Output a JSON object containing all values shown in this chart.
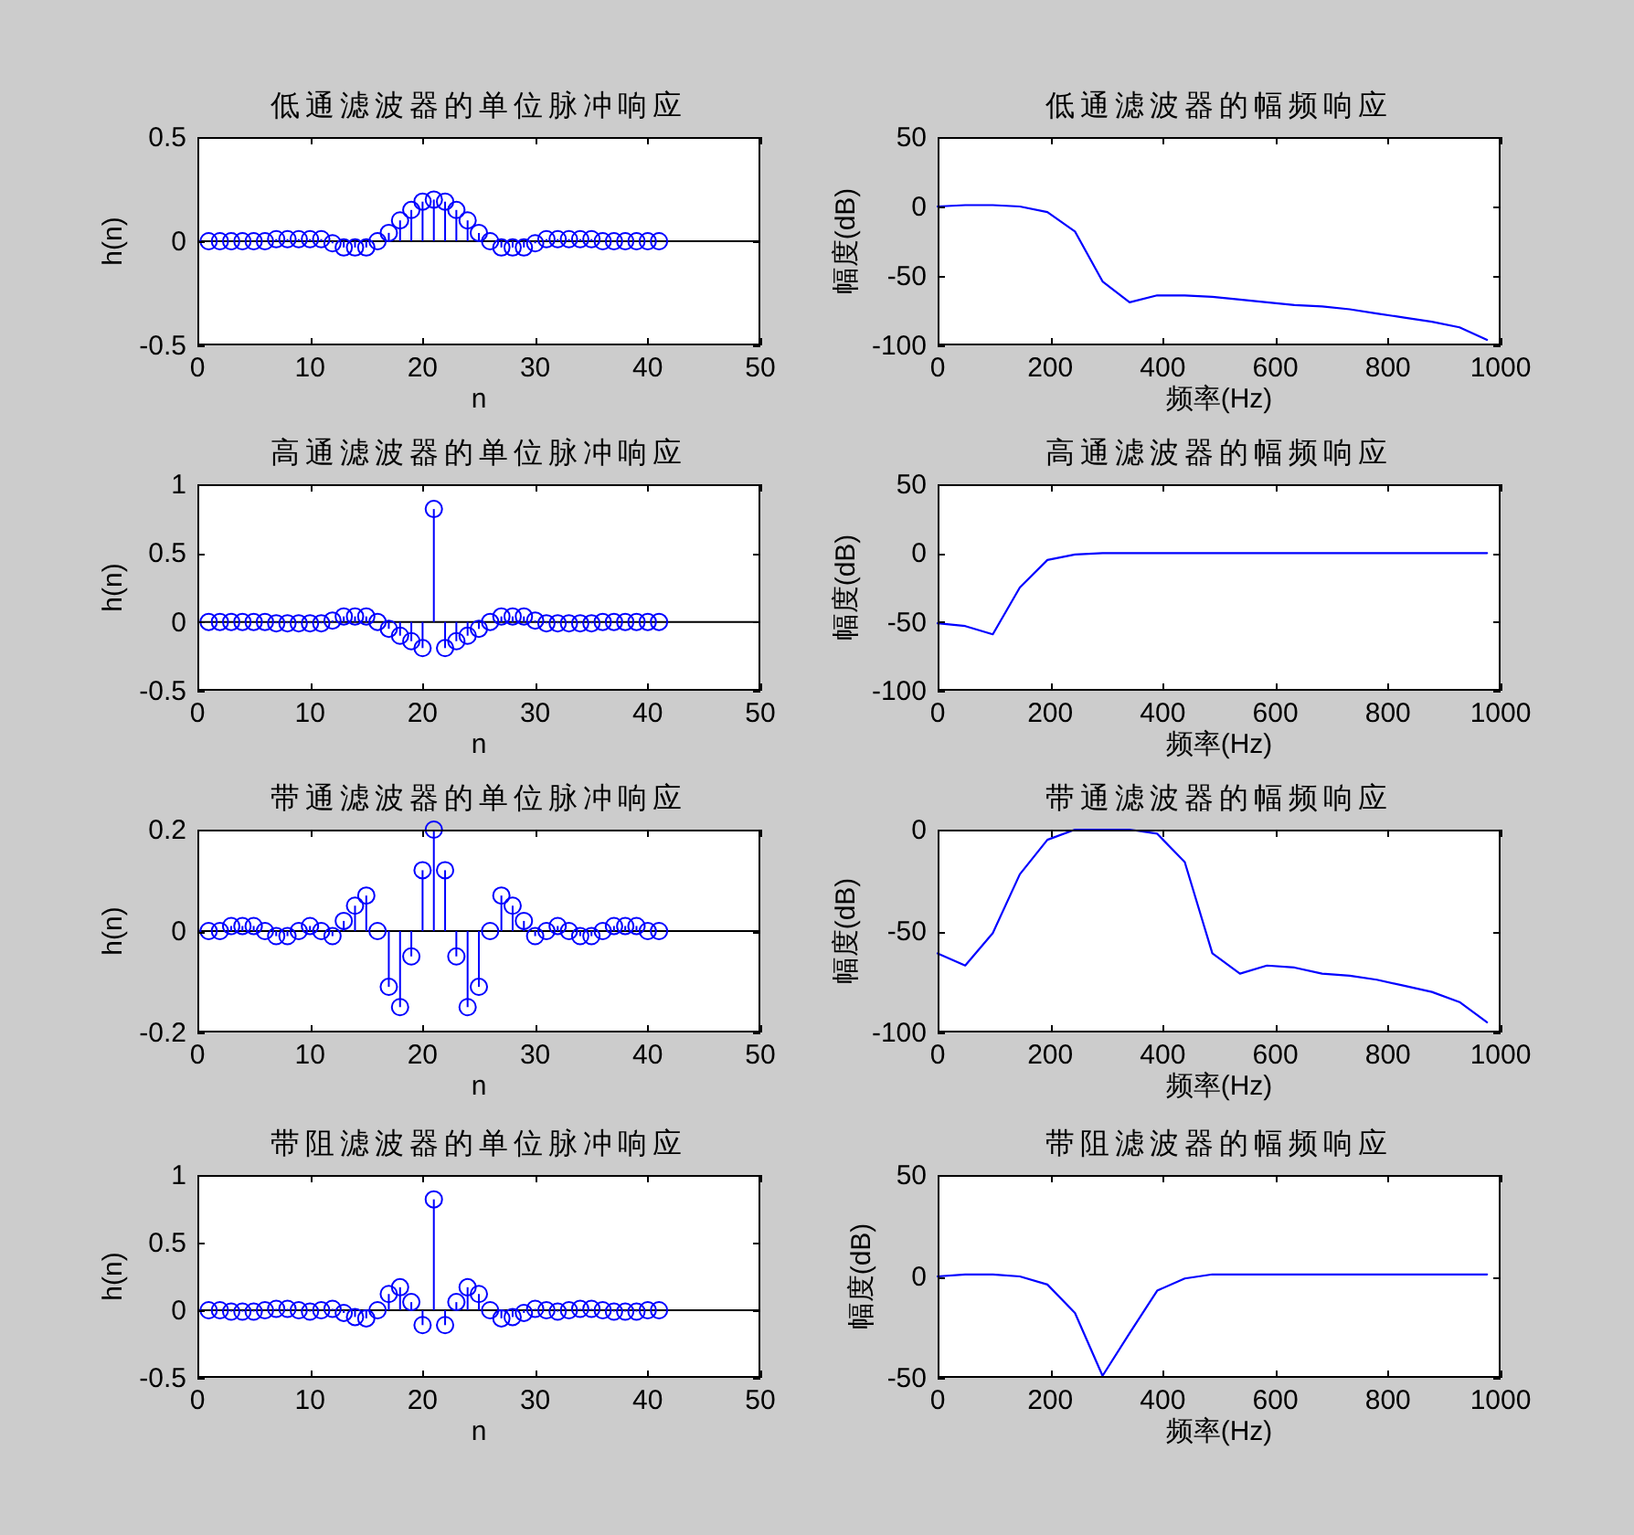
{
  "chart_data": [
    {
      "type": "lollipop",
      "title": "低通滤波器的单位脉冲响应",
      "xlabel": "n",
      "ylabel": "h(n)",
      "color": "#0000ff",
      "marker": "circle",
      "x": [
        1,
        2,
        3,
        4,
        5,
        6,
        7,
        8,
        9,
        10,
        11,
        12,
        13,
        14,
        15,
        16,
        17,
        18,
        19,
        20,
        21,
        22,
        23,
        24,
        25,
        26,
        27,
        28,
        29,
        30,
        31,
        32,
        33,
        34,
        35,
        36,
        37,
        38,
        39,
        40,
        41
      ],
      "values": [
        0,
        0,
        0,
        0,
        0,
        0,
        0.01,
        0.01,
        0.01,
        0.01,
        0.01,
        -0.01,
        -0.03,
        -0.03,
        -0.03,
        0,
        0.04,
        0.1,
        0.15,
        0.19,
        0.2,
        0.19,
        0.15,
        0.1,
        0.04,
        0,
        -0.03,
        -0.03,
        -0.03,
        -0.01,
        0.01,
        0.01,
        0.01,
        0.01,
        0.01,
        0,
        0,
        0,
        0,
        0,
        0
      ],
      "xlim": [
        0,
        50
      ],
      "xticks": [
        0,
        10,
        20,
        30,
        40,
        50
      ],
      "ylim": [
        -0.5,
        0.5
      ],
      "yticks": [
        -0.5,
        0,
        0.5
      ],
      "ref_lines": [
        {
          "axis": "y",
          "value": 0,
          "color": "#000000"
        }
      ]
    },
    {
      "type": "line",
      "title": "低通滤波器的幅频响应",
      "xlabel": "频率(Hz)",
      "ylabel": "幅度(dB)",
      "color": "#0000ff",
      "x": [
        0,
        49,
        98,
        146,
        195,
        244,
        293,
        341,
        390,
        439,
        488,
        537,
        585,
        634,
        683,
        732,
        780,
        829,
        878,
        927,
        976
      ],
      "values": [
        0,
        1,
        1,
        0,
        -4,
        -18,
        -54,
        -69,
        -64,
        -64,
        -65,
        -67,
        -69,
        -71,
        -72,
        -74,
        -77,
        -80,
        -83,
        -87,
        -96
      ],
      "xlim": [
        0,
        1000
      ],
      "xticks": [
        0,
        200,
        400,
        600,
        800,
        1000
      ],
      "ylim": [
        -100,
        50
      ],
      "yticks": [
        -100,
        -50,
        0,
        50
      ]
    },
    {
      "type": "lollipop",
      "title": "高通滤波器的单位脉冲响应",
      "xlabel": "n",
      "ylabel": "h(n)",
      "color": "#0000ff",
      "marker": "circle",
      "x": [
        1,
        2,
        3,
        4,
        5,
        6,
        7,
        8,
        9,
        10,
        11,
        12,
        13,
        14,
        15,
        16,
        17,
        18,
        19,
        20,
        21,
        22,
        23,
        24,
        25,
        26,
        27,
        28,
        29,
        30,
        31,
        32,
        33,
        34,
        35,
        36,
        37,
        38,
        39,
        40,
        41
      ],
      "values": [
        0,
        0,
        0,
        0,
        0,
        0,
        -0.01,
        -0.01,
        -0.01,
        -0.01,
        -0.01,
        0.01,
        0.04,
        0.04,
        0.04,
        0,
        -0.05,
        -0.1,
        -0.14,
        -0.19,
        0.82,
        -0.19,
        -0.14,
        -0.1,
        -0.05,
        0,
        0.04,
        0.04,
        0.04,
        0.01,
        -0.01,
        -0.01,
        -0.01,
        -0.01,
        -0.01,
        0,
        0,
        0,
        0,
        0,
        0
      ],
      "xlim": [
        0,
        50
      ],
      "xticks": [
        0,
        10,
        20,
        30,
        40,
        50
      ],
      "ylim": [
        -0.5,
        1
      ],
      "yticks": [
        -0.5,
        0,
        0.5,
        1
      ],
      "ref_lines": [
        {
          "axis": "y",
          "value": 0,
          "color": "#000000"
        }
      ]
    },
    {
      "type": "line",
      "title": "高通滤波器的幅频响应",
      "xlabel": "频率(Hz)",
      "ylabel": "幅度(dB)",
      "color": "#0000ff",
      "x": [
        0,
        49,
        98,
        146,
        195,
        244,
        293,
        341,
        390,
        439,
        488,
        537,
        585,
        634,
        683,
        732,
        780,
        829,
        878,
        927,
        976
      ],
      "values": [
        -51,
        -53,
        -59,
        -25,
        -5,
        -1,
        0,
        0,
        0,
        0,
        0,
        0,
        0,
        0,
        0,
        0,
        0,
        0,
        0,
        0,
        0
      ],
      "xlim": [
        0,
        1000
      ],
      "xticks": [
        0,
        200,
        400,
        600,
        800,
        1000
      ],
      "ylim": [
        -100,
        50
      ],
      "yticks": [
        -100,
        -50,
        0,
        50
      ]
    },
    {
      "type": "lollipop",
      "title": "带通滤波器的单位脉冲响应",
      "xlabel": "n",
      "ylabel": "h(n)",
      "color": "#0000ff",
      "marker": "circle",
      "x": [
        1,
        2,
        3,
        4,
        5,
        6,
        7,
        8,
        9,
        10,
        11,
        12,
        13,
        14,
        15,
        16,
        17,
        18,
        19,
        20,
        21,
        22,
        23,
        24,
        25,
        26,
        27,
        28,
        29,
        30,
        31,
        32,
        33,
        34,
        35,
        36,
        37,
        38,
        39,
        40,
        41
      ],
      "values": [
        0,
        0,
        0.01,
        0.01,
        0.01,
        0,
        -0.01,
        -0.01,
        0,
        0.01,
        0,
        -0.01,
        0.02,
        0.05,
        0.07,
        0,
        -0.11,
        -0.15,
        -0.05,
        0.12,
        0.2,
        0.12,
        -0.05,
        -0.15,
        -0.11,
        0,
        0.07,
        0.05,
        0.02,
        -0.01,
        0,
        0.01,
        0,
        -0.01,
        -0.01,
        0,
        0.01,
        0.01,
        0.01,
        0,
        0
      ],
      "xlim": [
        0,
        50
      ],
      "xticks": [
        0,
        10,
        20,
        30,
        40,
        50
      ],
      "ylim": [
        -0.2,
        0.2
      ],
      "yticks": [
        -0.2,
        0,
        0.2
      ],
      "ref_lines": [
        {
          "axis": "y",
          "value": 0,
          "color": "#000000"
        }
      ]
    },
    {
      "type": "line",
      "title": "带通滤波器的幅频响应",
      "xlabel": "频率(Hz)",
      "ylabel": "幅度(dB)",
      "color": "#0000ff",
      "x": [
        0,
        49,
        98,
        146,
        195,
        244,
        293,
        341,
        390,
        439,
        488,
        537,
        585,
        634,
        683,
        732,
        780,
        829,
        878,
        927,
        976
      ],
      "values": [
        -61,
        -67,
        -51,
        -22,
        -5,
        0,
        0,
        0,
        -2,
        -16,
        -61,
        -71,
        -67,
        -68,
        -71,
        -72,
        -74,
        -77,
        -80,
        -85,
        -95
      ],
      "xlim": [
        0,
        1000
      ],
      "xticks": [
        0,
        200,
        400,
        600,
        800,
        1000
      ],
      "ylim": [
        -100,
        0
      ],
      "yticks": [
        -100,
        -50,
        0
      ]
    },
    {
      "type": "lollipop",
      "title": "带阻滤波器的单位脉冲响应",
      "xlabel": "n",
      "ylabel": "h(n)",
      "color": "#0000ff",
      "marker": "circle",
      "x": [
        1,
        2,
        3,
        4,
        5,
        6,
        7,
        8,
        9,
        10,
        11,
        12,
        13,
        14,
        15,
        16,
        17,
        18,
        19,
        20,
        21,
        22,
        23,
        24,
        25,
        26,
        27,
        28,
        29,
        30,
        31,
        32,
        33,
        34,
        35,
        36,
        37,
        38,
        39,
        40,
        41
      ],
      "values": [
        0,
        0,
        -0.01,
        -0.01,
        -0.01,
        0,
        0.01,
        0.01,
        0,
        -0.01,
        0,
        0.01,
        -0.02,
        -0.05,
        -0.06,
        0,
        0.12,
        0.17,
        0.06,
        -0.11,
        0.82,
        -0.11,
        0.06,
        0.17,
        0.12,
        0,
        -0.06,
        -0.05,
        -0.02,
        0.01,
        0,
        -0.01,
        0,
        0.01,
        0.01,
        0,
        -0.01,
        -0.01,
        -0.01,
        0,
        0
      ],
      "xlim": [
        0,
        50
      ],
      "xticks": [
        0,
        10,
        20,
        30,
        40,
        50
      ],
      "ylim": [
        -0.5,
        1
      ],
      "yticks": [
        -0.5,
        0,
        0.5,
        1
      ],
      "ref_lines": [
        {
          "axis": "y",
          "value": 0,
          "color": "#000000"
        }
      ]
    },
    {
      "type": "line",
      "title": "带阻滤波器的幅频响应",
      "xlabel": "频率(Hz)",
      "ylabel": "幅度(dB)",
      "color": "#0000ff",
      "x": [
        0,
        49,
        98,
        146,
        195,
        244,
        293,
        341,
        390,
        439,
        488,
        537,
        585,
        634,
        683,
        732,
        780,
        829,
        878,
        927,
        976
      ],
      "values": [
        0,
        1,
        1,
        0,
        -4,
        -18,
        -49,
        -28,
        -7,
        -1,
        1,
        1,
        1,
        1,
        1,
        1,
        1,
        1,
        1,
        1,
        1
      ],
      "xlim": [
        0,
        1000
      ],
      "xticks": [
        0,
        200,
        400,
        600,
        800,
        1000
      ],
      "ylim": [
        -50,
        50
      ],
      "yticks": [
        -50,
        0,
        50
      ]
    }
  ]
}
